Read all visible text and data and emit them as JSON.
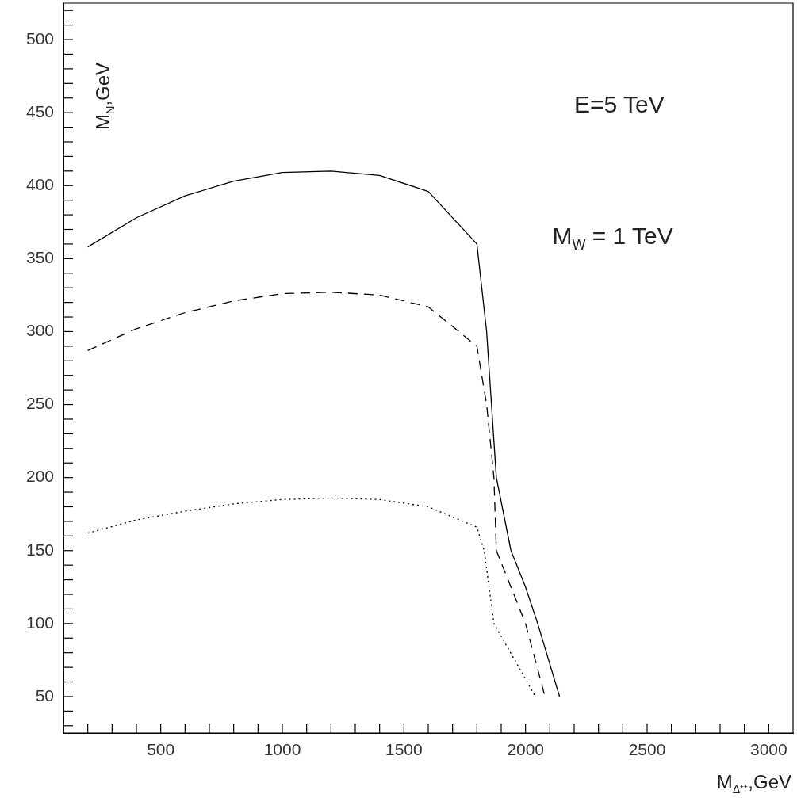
{
  "chart_data": {
    "type": "line",
    "xlabel": "M$_{Δ⁺⁺}$,GeV",
    "ylabel": "M$_{N}$,GeV",
    "annotations": [
      "E=5 TeV",
      "M$_{W}$ = 1 TeV"
    ],
    "xlim": [
      100,
      3100
    ],
    "ylim": [
      25,
      525
    ],
    "xticks": [
      {
        "value": 200,
        "label": null
      },
      {
        "value": 300,
        "label": null
      },
      {
        "value": 400,
        "label": null
      },
      500,
      {
        "value": 600,
        "label": null
      },
      {
        "value": 700,
        "label": null
      },
      {
        "value": 800,
        "label": null
      },
      {
        "value": 900,
        "label": null
      },
      1000,
      {
        "value": 1100,
        "label": null
      },
      {
        "value": 1200,
        "label": null
      },
      {
        "value": 1300,
        "label": null
      },
      {
        "value": 1400,
        "label": null
      },
      1500,
      {
        "value": 1600,
        "label": null
      },
      {
        "value": 1700,
        "label": null
      },
      {
        "value": 1800,
        "label": null
      },
      {
        "value": 1900,
        "label": null
      },
      2000,
      {
        "value": 2100,
        "label": null
      },
      {
        "value": 2200,
        "label": null
      },
      {
        "value": 2300,
        "label": null
      },
      {
        "value": 2400,
        "label": null
      },
      2500,
      {
        "value": 2600,
        "label": null
      },
      {
        "value": 2700,
        "label": null
      },
      {
        "value": 2800,
        "label": null
      },
      {
        "value": 2900,
        "label": null
      },
      3000
    ],
    "yticks": [
      {
        "value": 30,
        "label": null
      },
      {
        "value": 40,
        "label": null
      },
      50,
      {
        "value": 60,
        "label": null
      },
      {
        "value": 70,
        "label": null
      },
      {
        "value": 80,
        "label": null
      },
      {
        "value": 90,
        "label": null
      },
      100,
      {
        "value": 110,
        "label": null
      },
      {
        "value": 120,
        "label": null
      },
      {
        "value": 130,
        "label": null
      },
      {
        "value": 140,
        "label": null
      },
      150,
      {
        "value": 160,
        "label": null
      },
      {
        "value": 170,
        "label": null
      },
      {
        "value": 180,
        "label": null
      },
      {
        "value": 190,
        "label": null
      },
      200,
      {
        "value": 210,
        "label": null
      },
      {
        "value": 220,
        "label": null
      },
      {
        "value": 230,
        "label": null
      },
      {
        "value": 240,
        "label": null
      },
      250,
      {
        "value": 260,
        "label": null
      },
      {
        "value": 270,
        "label": null
      },
      {
        "value": 280,
        "label": null
      },
      {
        "value": 290,
        "label": null
      },
      300,
      {
        "value": 310,
        "label": null
      },
      {
        "value": 320,
        "label": null
      },
      {
        "value": 330,
        "label": null
      },
      {
        "value": 340,
        "label": null
      },
      350,
      {
        "value": 360,
        "label": null
      },
      {
        "value": 370,
        "label": null
      },
      {
        "value": 380,
        "label": null
      },
      {
        "value": 390,
        "label": null
      },
      400,
      {
        "value": 410,
        "label": null
      },
      {
        "value": 420,
        "label": null
      },
      {
        "value": 430,
        "label": null
      },
      {
        "value": 440,
        "label": null
      },
      450,
      {
        "value": 460,
        "label": null
      },
      {
        "value": 470,
        "label": null
      },
      {
        "value": 480,
        "label": null
      },
      {
        "value": 490,
        "label": null
      },
      500,
      {
        "value": 510,
        "label": null
      },
      {
        "value": 520,
        "label": null
      }
    ],
    "grid": false,
    "legend": false,
    "marker": "none",
    "series": [
      {
        "color": "#000000",
        "line_style": "solid",
        "x": [
          200,
          400,
          600,
          800,
          1000,
          1200,
          1400,
          1600,
          1800,
          1840,
          1860,
          1880,
          1940,
          2000,
          2050,
          2140
        ],
        "values": [
          358,
          378,
          393,
          403,
          409,
          410,
          407,
          396,
          360,
          300,
          250,
          200,
          150,
          125,
          100,
          50
        ]
      },
      {
        "color": "#000000",
        "line_style": "dashed",
        "x": [
          200,
          400,
          600,
          800,
          1000,
          1200,
          1400,
          1600,
          1800,
          1840,
          1870,
          1880,
          2000,
          2080
        ],
        "values": [
          287,
          302,
          313,
          321,
          326,
          327,
          325,
          317,
          290,
          250,
          200,
          150,
          100,
          50
        ]
      },
      {
        "color": "#000000",
        "line_style": "dotted",
        "x": [
          200,
          400,
          600,
          800,
          1000,
          1200,
          1400,
          1600,
          1800,
          1830,
          1870,
          1990,
          2040
        ],
        "values": [
          162,
          171,
          177,
          182,
          185,
          186,
          185,
          180,
          166,
          150,
          100,
          65,
          50
        ]
      }
    ]
  }
}
